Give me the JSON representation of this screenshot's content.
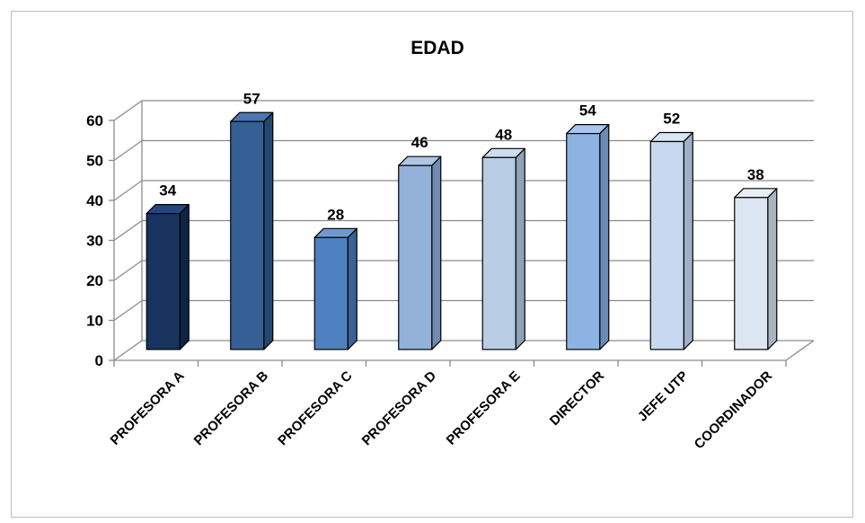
{
  "chart_data": {
    "type": "bar",
    "title": "EDAD",
    "categories": [
      "PROFESORA A",
      "PROFESORA B",
      "PROFESORA C",
      "PROFESORA D",
      "PROFESORA E",
      "DIRECTOR",
      "JEFE UTP",
      "COORDINADOR"
    ],
    "values": [
      34,
      57,
      28,
      46,
      48,
      54,
      52,
      38
    ],
    "data_labels": [
      "34",
      "57",
      "28",
      "46",
      "48",
      "54",
      "52",
      "38"
    ],
    "ylim": [
      0,
      60
    ],
    "yticks": [
      "0",
      "10",
      "20",
      "30",
      "40",
      "50",
      "60"
    ],
    "grid": true,
    "legend": "none",
    "bar_colors": [
      "#17335e",
      "#365f96",
      "#4f80c0",
      "#93b1d9",
      "#b8cce4",
      "#8db3e2",
      "#c6d9f1",
      "#dce6f2"
    ],
    "bar_side_colors": [
      "#0f2444",
      "#25466f",
      "#3b6296",
      "#6f8bb0",
      "#8ea3ba",
      "#6a8bb4",
      "#9db1c8",
      "#aab4c0"
    ],
    "bar_top_colors": [
      "#23477d",
      "#4a76b1",
      "#6e9ad2",
      "#adc6e6",
      "#cddcee",
      "#a9c7ec",
      "#d9e6f6",
      "#e8eef6"
    ]
  }
}
